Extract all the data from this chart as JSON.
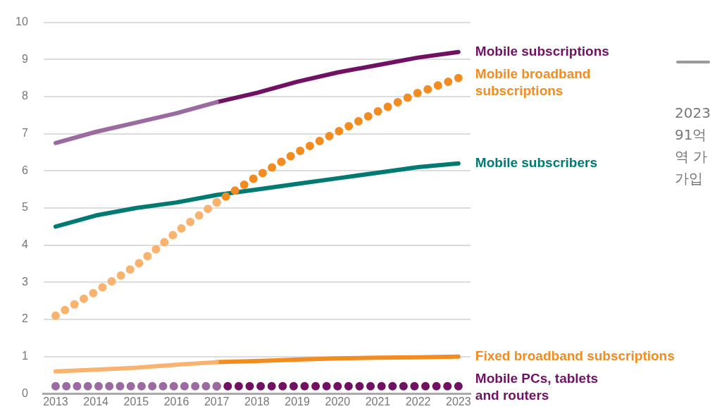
{
  "chart_data": {
    "type": "line",
    "xlim": [
      2012.7,
      2023.3
    ],
    "xticks": [
      2013,
      2014,
      2015,
      2016,
      2017,
      2018,
      2019,
      2020,
      2021,
      2022,
      2023
    ],
    "ylim": [
      0,
      10
    ],
    "yticks": [
      0,
      1,
      2,
      3,
      4,
      5,
      6,
      7,
      8,
      9,
      10
    ],
    "grid": "y",
    "legend": false,
    "marker": "none",
    "annotations": [
      "2023",
      "91억",
      "역 가",
      "가입"
    ],
    "series": [
      {
        "color": "#9b6aa0",
        "x": [
          2013,
          2014,
          2015,
          2016,
          2017
        ],
        "values": [
          6.75,
          7.05,
          7.3,
          7.55,
          7.85
        ]
      },
      {
        "name": "Mobile subscriptions",
        "color": "#701163",
        "x": [
          2017,
          2018,
          2019,
          2020,
          2021,
          2022,
          2023
        ],
        "values": [
          7.85,
          8.1,
          8.4,
          8.65,
          8.85,
          9.05,
          9.2
        ]
      },
      {
        "color": "#f9b36f",
        "line_style": "dotted",
        "x": [
          2013,
          2014,
          2015,
          2016,
          2017
        ],
        "values": [
          2.1,
          2.75,
          3.45,
          4.35,
          5.15
        ]
      },
      {
        "name": "Mobile broadband subscriptions",
        "color": "#f28c20",
        "line_style": "dotted",
        "x": [
          2017,
          2018,
          2019,
          2020,
          2021,
          2022,
          2023
        ],
        "values": [
          5.15,
          5.85,
          6.5,
          7.05,
          7.6,
          8.1,
          8.5
        ]
      },
      {
        "name": "Mobile subscribers",
        "color": "#007a72",
        "x": [
          2013,
          2014,
          2015,
          2016,
          2017,
          2018,
          2019,
          2020,
          2021,
          2022,
          2023
        ],
        "values": [
          4.5,
          4.8,
          5.0,
          5.15,
          5.35,
          5.5,
          5.65,
          5.8,
          5.95,
          6.1,
          6.2
        ]
      },
      {
        "color": "#f9b36f",
        "x": [
          2013,
          2014,
          2015,
          2016,
          2017
        ],
        "values": [
          0.6,
          0.65,
          0.7,
          0.78,
          0.85
        ]
      },
      {
        "name": "Fixed broadband subscriptions",
        "color": "#f28c20",
        "x": [
          2017,
          2018,
          2019,
          2020,
          2021,
          2022,
          2023
        ],
        "values": [
          0.85,
          0.88,
          0.92,
          0.95,
          0.97,
          0.98,
          1.0
        ]
      },
      {
        "color": "#9b6aa0",
        "line_style": "dotted",
        "x": [
          2013,
          2014,
          2015,
          2016,
          2017
        ],
        "values": [
          0.2,
          0.2,
          0.2,
          0.2,
          0.2
        ]
      },
      {
        "name": "Mobile PCs, tablets and routers",
        "color": "#701163",
        "line_style": "dotted",
        "x": [
          2017,
          2018,
          2019,
          2020,
          2021,
          2022,
          2023
        ],
        "values": [
          0.2,
          0.2,
          0.2,
          0.2,
          0.2,
          0.2,
          0.2
        ]
      }
    ]
  }
}
